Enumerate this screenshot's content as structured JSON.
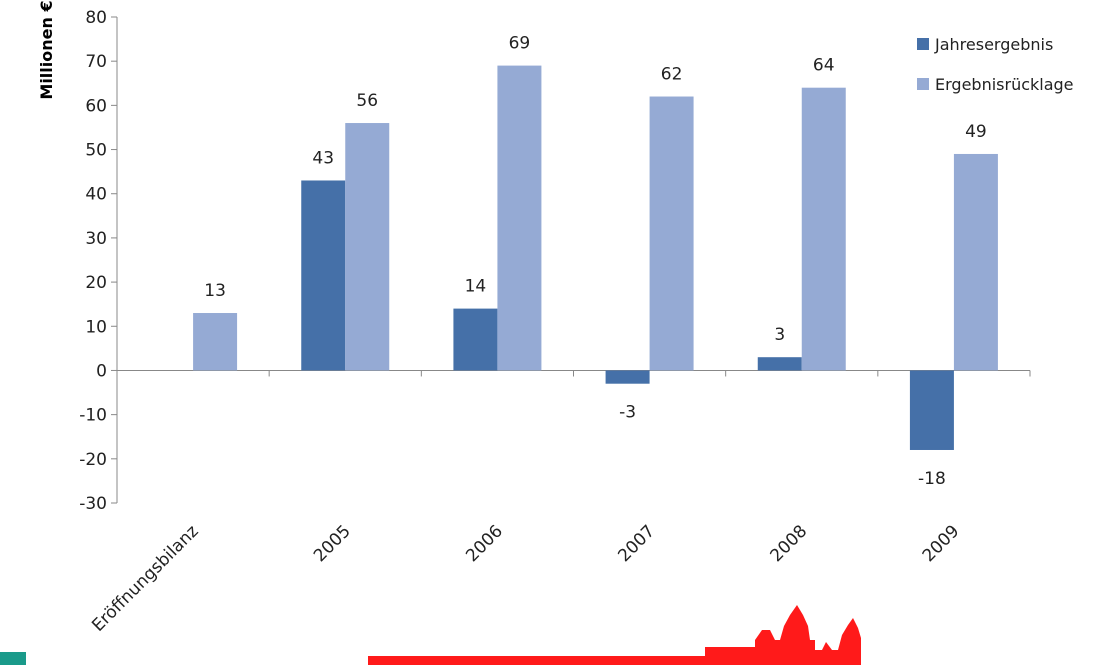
{
  "chart_data": {
    "type": "bar",
    "title": "",
    "ylabel": "Millionen €",
    "xlabel": "",
    "ylim": [
      -30,
      80
    ],
    "yticks": [
      80,
      70,
      60,
      50,
      40,
      30,
      20,
      10,
      0,
      -10,
      -20,
      -30
    ],
    "grid": false,
    "legend_position": "top-right",
    "categories": [
      "Eröffnungsbilanz",
      "2005",
      "2006",
      "2007",
      "2008",
      "2009"
    ],
    "series": [
      {
        "name": "Jahresergebnis",
        "color": "#4570A8",
        "values": [
          null,
          43,
          14,
          -3,
          3,
          -18
        ],
        "labels": [
          "",
          "43",
          "14",
          "-3",
          "3",
          "-18"
        ]
      },
      {
        "name": "Ergebnisrücklage",
        "color": "#95AAD4",
        "values": [
          13,
          56,
          69,
          62,
          64,
          49
        ],
        "labels": [
          "13",
          "56",
          "69",
          "62",
          "64",
          "49"
        ]
      }
    ]
  },
  "footer": {
    "brand_color": "#FF1A1A",
    "accent_color": "#1A9A8A"
  }
}
